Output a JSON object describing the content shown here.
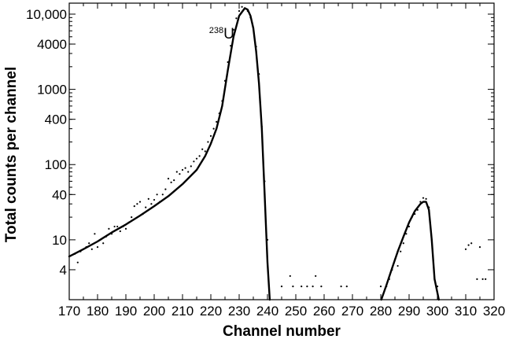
{
  "chart_data": {
    "type": "scatter",
    "xlabel": "Channel number",
    "ylabel": "Total counts per channel",
    "xlim": [
      170,
      320
    ],
    "ylim": [
      1.6,
      14000
    ],
    "yscale": "log",
    "grid": false,
    "x_ticks": [
      170,
      180,
      190,
      200,
      210,
      220,
      230,
      240,
      250,
      260,
      270,
      280,
      290,
      300,
      310,
      320
    ],
    "y_tick_values": [
      4,
      10,
      40,
      100,
      400,
      1000,
      4000,
      10000
    ],
    "y_tick_labels": [
      "4",
      "10",
      "40",
      "100",
      "400",
      "1000",
      "4000",
      "10,000"
    ],
    "annotation": {
      "mass": "238",
      "symbol": "U",
      "x": 225.5,
      "y": 5500
    },
    "series": [
      {
        "kind": "points",
        "points": [
          [
            172,
            6.5
          ],
          [
            173,
            5
          ],
          [
            174,
            7
          ],
          [
            176,
            8
          ],
          [
            177,
            9
          ],
          [
            178,
            7.5
          ],
          [
            179,
            12
          ],
          [
            180,
            8
          ],
          [
            181,
            10
          ],
          [
            182,
            9
          ],
          [
            183,
            11
          ],
          [
            184,
            14
          ],
          [
            185,
            12
          ],
          [
            186,
            15
          ],
          [
            187,
            15
          ],
          [
            188,
            13
          ],
          [
            189,
            15
          ],
          [
            190,
            14
          ],
          [
            191,
            17
          ],
          [
            192,
            20
          ],
          [
            193,
            28
          ],
          [
            194,
            30
          ],
          [
            195,
            32
          ],
          [
            196,
            22
          ],
          [
            197,
            27
          ],
          [
            198,
            35
          ],
          [
            199,
            30
          ],
          [
            200,
            34
          ],
          [
            201,
            40
          ],
          [
            202,
            32
          ],
          [
            203,
            40
          ],
          [
            204,
            47
          ],
          [
            205,
            65
          ],
          [
            206,
            58
          ],
          [
            207,
            62
          ],
          [
            208,
            80
          ],
          [
            209,
            75
          ],
          [
            210,
            85
          ],
          [
            211,
            90
          ],
          [
            212,
            80
          ],
          [
            213,
            95
          ],
          [
            214,
            110
          ],
          [
            215,
            120
          ],
          [
            216,
            130
          ],
          [
            217,
            160
          ],
          [
            218,
            150
          ],
          [
            219,
            200
          ],
          [
            220,
            240
          ],
          [
            221,
            300
          ],
          [
            222,
            370
          ],
          [
            223,
            480
          ],
          [
            224,
            700
          ],
          [
            225,
            1300
          ],
          [
            226,
            2300
          ],
          [
            227,
            3800
          ],
          [
            228,
            6200
          ],
          [
            229,
            8800
          ],
          [
            230,
            11000
          ],
          [
            231,
            12500
          ],
          [
            232,
            12000
          ],
          [
            233,
            11000
          ],
          [
            234,
            9000
          ],
          [
            235,
            6500
          ],
          [
            236,
            3700
          ],
          [
            237,
            1600
          ],
          [
            238,
            320
          ],
          [
            239,
            60
          ],
          [
            240,
            10
          ],
          [
            245,
            2.4
          ],
          [
            248,
            3.3
          ],
          [
            249,
            2.4
          ],
          [
            252,
            2.4
          ],
          [
            254,
            2.4
          ],
          [
            256,
            2.4
          ],
          [
            257,
            3.3
          ],
          [
            259,
            2.4
          ],
          [
            266,
            2.4
          ],
          [
            268,
            2.4
          ],
          [
            280,
            2.4
          ],
          [
            282,
            2.4
          ],
          [
            283,
            3
          ],
          [
            284,
            4
          ],
          [
            285,
            5.5
          ],
          [
            286,
            4.5
          ],
          [
            287,
            7
          ],
          [
            288,
            9
          ],
          [
            289,
            12
          ],
          [
            290,
            15
          ],
          [
            291,
            20
          ],
          [
            292,
            22
          ],
          [
            293,
            25
          ],
          [
            294,
            32
          ],
          [
            295,
            36
          ],
          [
            296,
            35
          ],
          [
            297,
            27
          ],
          [
            298,
            10
          ],
          [
            299,
            3
          ],
          [
            300,
            2.4
          ],
          [
            310,
            7.5
          ],
          [
            311,
            8.5
          ],
          [
            312,
            9
          ],
          [
            314,
            3
          ],
          [
            315,
            8
          ],
          [
            316,
            3
          ],
          [
            317,
            3
          ]
        ]
      },
      {
        "kind": "fit",
        "x": [
          170,
          175,
          180,
          185,
          190,
          195,
          200,
          205,
          210,
          215,
          218,
          220,
          222,
          224,
          226,
          228,
          230,
          232,
          233,
          234,
          235,
          236,
          237,
          238,
          239,
          240,
          240.8
        ],
        "y": [
          6,
          7.5,
          9.5,
          12.5,
          16,
          21,
          28,
          38,
          55,
          85,
          130,
          190,
          300,
          600,
          1800,
          5000,
          9500,
          12000,
          11500,
          9500,
          6500,
          3200,
          1200,
          300,
          40,
          5,
          1.6
        ]
      },
      {
        "kind": "fit",
        "x": [
          280.2,
          282,
          284,
          286,
          288,
          290,
          292,
          294,
          295,
          296,
          297,
          298,
          299,
          300.5
        ],
        "y": [
          1.6,
          2.5,
          4.2,
          7,
          11,
          17,
          24,
          30,
          32,
          32,
          25,
          10,
          3,
          1.6
        ]
      }
    ]
  }
}
